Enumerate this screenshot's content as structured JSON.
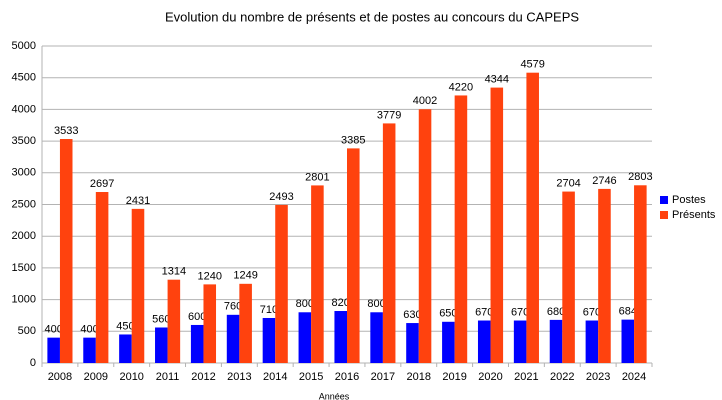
{
  "chart_data": {
    "type": "bar",
    "title": "Evolution du nombre de présents et de postes au concours du CAPEPS",
    "x_label": "Années",
    "categories": [
      "2008",
      "2009",
      "2010",
      "2011",
      "2012",
      "2013",
      "2014",
      "2015",
      "2016",
      "2017",
      "2018",
      "2019",
      "2020",
      "2021",
      "2022",
      "2023",
      "2024"
    ],
    "series": [
      {
        "name": "Postes",
        "color": "#0000ff",
        "values": [
          400,
          400,
          450,
          560,
          600,
          760,
          710,
          800,
          820,
          800,
          630,
          650,
          670,
          670,
          680,
          670,
          684
        ]
      },
      {
        "name": "Présents",
        "color": "#ff420e",
        "values": [
          3533,
          2697,
          2431,
          1314,
          1240,
          1249,
          2493,
          2801,
          3385,
          3779,
          4002,
          4220,
          4344,
          4579,
          2704,
          2746,
          2803
        ]
      }
    ],
    "ylim": [
      0,
      5000
    ],
    "yticks": [
      0,
      500,
      1000,
      1500,
      2000,
      2500,
      3000,
      3500,
      4000,
      4500,
      5000
    ],
    "grid": true,
    "legend": "right"
  }
}
